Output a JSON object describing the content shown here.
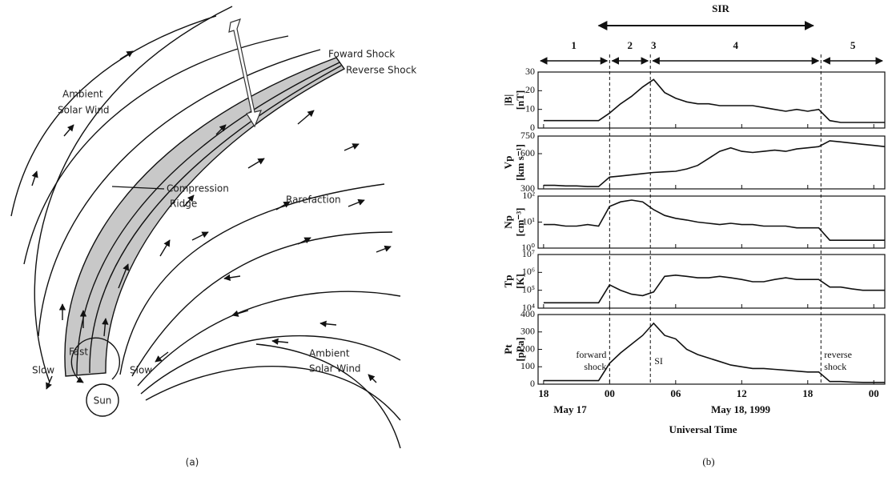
{
  "figure_a": {
    "caption": "(a)",
    "labels": {
      "forward_shock": "Foward Shock",
      "reverse_shock": "Reverse Shock",
      "ambient_1": [
        "Ambient",
        "Solar Wind"
      ],
      "compression": [
        "Compression",
        "Ridge"
      ],
      "rarefaction": "Rarefaction",
      "fast": "Fast",
      "slow_left": "Slow",
      "slow_right": "Slow",
      "sun": "Sun",
      "ambient_2": [
        "Ambient",
        "Solar Wind"
      ]
    }
  },
  "figure_b": {
    "caption": "(b)",
    "sir": "SIR",
    "sir_span": [
      -1,
      18.5
    ],
    "regions": [
      {
        "label": "1",
        "to": 0
      },
      {
        "label": "2",
        "from": 0,
        "to": 3.7
      },
      {
        "label": "3"
      },
      {
        "label": "4",
        "from": 3.7,
        "to": 19.2
      },
      {
        "label": "5",
        "from": 19.2
      }
    ],
    "events": [
      {
        "label": [
          "forward",
          "shock"
        ],
        "x": 0
      },
      {
        "label": [
          "SI"
        ],
        "x": 3.7
      },
      {
        "label": [
          "reverse",
          "shock"
        ],
        "x": 19.2
      }
    ],
    "date_labels": [
      "May 17",
      "May 18, 1999"
    ],
    "axis_title": "Universal Time"
  },
  "chart_data": [
    {
      "type": "line",
      "log_y": false,
      "ylabel": [
        "|B|",
        "[nT]"
      ],
      "xlim": [
        -6.5,
        25
      ],
      "x": [
        -6,
        -5,
        -4,
        -3,
        -2,
        -1,
        0,
        1,
        2,
        3,
        4,
        5,
        6,
        7,
        8,
        9,
        10,
        11,
        12,
        13,
        14,
        15,
        16,
        17,
        18,
        19,
        20,
        21,
        22,
        23,
        24,
        25
      ],
      "ylim": [
        0,
        30
      ],
      "yticks": [
        0,
        10,
        20,
        30
      ],
      "series": [
        {
          "color": "#111111",
          "values": [
            4,
            4,
            4,
            4,
            4,
            4,
            8,
            13,
            17,
            22,
            26,
            19,
            16,
            14,
            13,
            13,
            12,
            12,
            12,
            12,
            11,
            10,
            9,
            10,
            9,
            10,
            4,
            3,
            3,
            3,
            3,
            3
          ]
        }
      ]
    },
    {
      "type": "line",
      "log_y": false,
      "ylabel": [
        "Vp",
        "[km s⁻¹]"
      ],
      "xlim": [
        -6.5,
        25
      ],
      "x": [
        -6,
        -5,
        -4,
        -3,
        -2,
        -1,
        0,
        1,
        2,
        3,
        4,
        5,
        6,
        7,
        8,
        9,
        10,
        11,
        12,
        13,
        14,
        15,
        16,
        17,
        18,
        19,
        20,
        21,
        22,
        23,
        24,
        25
      ],
      "ylim": [
        300,
        750
      ],
      "yticks": [
        300,
        600,
        750
      ],
      "series": [
        {
          "color": "#111111",
          "values": [
            330,
            330,
            325,
            325,
            320,
            320,
            400,
            410,
            420,
            430,
            440,
            445,
            450,
            470,
            500,
            560,
            620,
            650,
            620,
            610,
            620,
            630,
            620,
            640,
            650,
            660,
            710,
            700,
            690,
            680,
            670,
            660
          ]
        }
      ]
    },
    {
      "type": "line",
      "log_y": true,
      "ylabel": [
        "Np",
        "[cm⁻³]"
      ],
      "xlim": [
        -6.5,
        25
      ],
      "x": [
        -6,
        -5,
        -4,
        -3,
        -2,
        -1,
        0,
        1,
        2,
        3,
        4,
        5,
        6,
        7,
        8,
        9,
        10,
        11,
        12,
        13,
        14,
        15,
        16,
        17,
        18,
        19,
        20,
        21,
        22,
        23,
        24,
        25
      ],
      "ylim": [
        1,
        100
      ],
      "yticks": [
        {
          "value": 1,
          "label": "10⁰"
        },
        {
          "value": 10,
          "label": "10¹"
        },
        {
          "value": 100,
          "label": "10²"
        }
      ],
      "series": [
        {
          "color": "#111111",
          "values": [
            8,
            8,
            7,
            7,
            8,
            7,
            40,
            60,
            70,
            60,
            30,
            18,
            14,
            12,
            10,
            9,
            8,
            9,
            8,
            8,
            7,
            7,
            7,
            6,
            6,
            6,
            2,
            2,
            2,
            2,
            2,
            2
          ]
        }
      ]
    },
    {
      "type": "line",
      "log_y": true,
      "ylabel": [
        "Tp",
        "[K]"
      ],
      "xlim": [
        -6.5,
        25
      ],
      "x": [
        -6,
        -5,
        -4,
        -3,
        -2,
        -1,
        0,
        1,
        2,
        3,
        4,
        5,
        6,
        7,
        8,
        9,
        10,
        11,
        12,
        13,
        14,
        15,
        16,
        17,
        18,
        19,
        20,
        21,
        22,
        23,
        24,
        25
      ],
      "ylim": [
        10000,
        10000000
      ],
      "yticks": [
        {
          "value": 10000,
          "label": "10⁴"
        },
        {
          "value": 100000,
          "label": "10⁵"
        },
        {
          "value": 1000000,
          "label": "10⁶"
        },
        {
          "value": 10000000,
          "label": "10⁷"
        }
      ],
      "series": [
        {
          "color": "#111111",
          "values": [
            20000,
            20000,
            20000,
            20000,
            20000,
            20000,
            200000,
            100000,
            60000,
            50000,
            80000,
            600000,
            700000,
            600000,
            500000,
            500000,
            600000,
            500000,
            400000,
            300000,
            300000,
            400000,
            500000,
            400000,
            400000,
            400000,
            150000,
            150000,
            120000,
            100000,
            100000,
            100000
          ]
        }
      ]
    },
    {
      "type": "line",
      "log_y": false,
      "ylabel": [
        "Pt",
        "[pPa]"
      ],
      "xlim": [
        -6.5,
        25
      ],
      "x": [
        -6,
        -5,
        -4,
        -3,
        -2,
        -1,
        0,
        1,
        2,
        3,
        4,
        5,
        6,
        7,
        8,
        9,
        10,
        11,
        12,
        13,
        14,
        15,
        16,
        17,
        18,
        19,
        20,
        21,
        22,
        23,
        24,
        25
      ],
      "ylim": [
        0,
        400
      ],
      "yticks": [
        0,
        100,
        200,
        300,
        400
      ],
      "xticks": [
        {
          "value": -6,
          "label": "18"
        },
        {
          "value": 0,
          "label": "00"
        },
        {
          "value": 6,
          "label": "06"
        },
        12,
        {
          "value": 18,
          "label": "18"
        },
        {
          "value": 24,
          "label": "00"
        }
      ],
      "series": [
        {
          "color": "#111111",
          "values": [
            20,
            20,
            20,
            20,
            20,
            20,
            120,
            180,
            230,
            280,
            350,
            280,
            260,
            200,
            170,
            150,
            130,
            110,
            100,
            90,
            90,
            85,
            80,
            75,
            70,
            70,
            15,
            15,
            12,
            10,
            10,
            10
          ]
        }
      ]
    }
  ]
}
